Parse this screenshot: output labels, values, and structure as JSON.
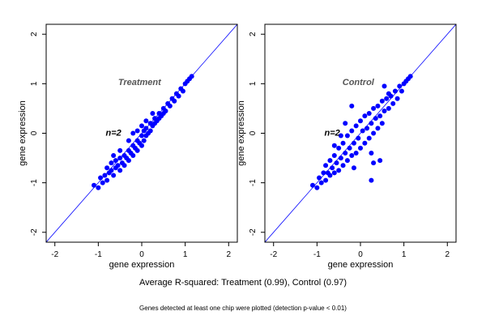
{
  "caption": "Average R-squared: Treatment (0.99), Control (0.97)",
  "footnote": "Genes detected at least one chip were plotted (detection p-value < 0.01)",
  "chart_data": [
    {
      "type": "scatter",
      "title": "",
      "panel_label": "Treatment",
      "annotation": "n=2",
      "xlabel": "gene expression",
      "ylabel": "gene expression",
      "xlim": [
        -2.2,
        2.2
      ],
      "ylim": [
        -2.2,
        2.2
      ],
      "xticks": [
        -2,
        -1,
        0,
        1,
        2
      ],
      "yticks": [
        -2,
        -1,
        0,
        1,
        2
      ],
      "reference_line": {
        "slope": 1,
        "intercept": 0,
        "color": "#0000ff"
      },
      "point_color": "#0000ff",
      "grid": false,
      "points": [
        [
          -1.1,
          -1.05
        ],
        [
          -1.0,
          -1.1
        ],
        [
          -0.95,
          -0.9
        ],
        [
          -0.9,
          -1.0
        ],
        [
          -0.85,
          -0.85
        ],
        [
          -0.8,
          -0.95
        ],
        [
          -0.8,
          -0.7
        ],
        [
          -0.75,
          -0.8
        ],
        [
          -0.7,
          -0.75
        ],
        [
          -0.7,
          -0.6
        ],
        [
          -0.65,
          -0.85
        ],
        [
          -0.6,
          -0.7
        ],
        [
          -0.6,
          -0.55
        ],
        [
          -0.55,
          -0.65
        ],
        [
          -0.5,
          -0.75
        ],
        [
          -0.5,
          -0.5
        ],
        [
          -0.45,
          -0.6
        ],
        [
          -0.4,
          -0.45
        ],
        [
          -0.4,
          -0.65
        ],
        [
          -0.35,
          -0.5
        ],
        [
          -0.3,
          -0.35
        ],
        [
          -0.3,
          -0.55
        ],
        [
          -0.25,
          -0.4
        ],
        [
          -0.2,
          -0.25
        ],
        [
          -0.2,
          -0.45
        ],
        [
          -0.15,
          -0.3
        ],
        [
          -0.1,
          -0.15
        ],
        [
          -0.1,
          -0.35
        ],
        [
          -0.05,
          -0.2
        ],
        [
          0.0,
          -0.05
        ],
        [
          0.0,
          -0.25
        ],
        [
          0.05,
          0.05
        ],
        [
          0.05,
          -0.15
        ],
        [
          0.1,
          0.1
        ],
        [
          0.1,
          -0.05
        ],
        [
          0.15,
          0.0
        ],
        [
          0.2,
          0.2
        ],
        [
          0.2,
          0.05
        ],
        [
          0.25,
          0.15
        ],
        [
          0.3,
          0.3
        ],
        [
          0.3,
          0.2
        ],
        [
          0.35,
          0.25
        ],
        [
          0.4,
          0.4
        ],
        [
          0.4,
          0.3
        ],
        [
          0.45,
          0.35
        ],
        [
          0.5,
          0.5
        ],
        [
          0.5,
          0.4
        ],
        [
          0.55,
          0.45
        ],
        [
          0.6,
          0.6
        ],
        [
          0.65,
          0.55
        ],
        [
          0.7,
          0.7
        ],
        [
          0.75,
          0.65
        ],
        [
          0.8,
          0.8
        ],
        [
          0.85,
          0.75
        ],
        [
          0.9,
          0.9
        ],
        [
          0.95,
          0.85
        ],
        [
          1.0,
          1.0
        ],
        [
          1.05,
          1.05
        ],
        [
          1.1,
          1.1
        ],
        [
          1.15,
          1.15
        ],
        [
          -0.5,
          -0.35
        ],
        [
          -0.3,
          -0.15
        ],
        [
          -0.1,
          0.05
        ],
        [
          0.1,
          0.25
        ],
        [
          -0.65,
          -0.45
        ],
        [
          -0.2,
          0.0
        ],
        [
          0.0,
          0.15
        ],
        [
          0.25,
          0.4
        ]
      ]
    },
    {
      "type": "scatter",
      "title": "",
      "panel_label": "Control",
      "annotation": "n=2",
      "xlabel": "gene expression",
      "ylabel": "gene expression",
      "xlim": [
        -2.2,
        2.2
      ],
      "ylim": [
        -2.2,
        2.2
      ],
      "xticks": [
        -2,
        -1,
        0,
        1,
        2
      ],
      "yticks": [
        -2,
        -1,
        0,
        1,
        2
      ],
      "reference_line": {
        "slope": 1,
        "intercept": 0,
        "color": "#0000ff"
      },
      "point_color": "#0000ff",
      "grid": false,
      "points": [
        [
          -1.1,
          -1.05
        ],
        [
          -1.0,
          -1.1
        ],
        [
          -0.95,
          -0.9
        ],
        [
          -0.9,
          -1.0
        ],
        [
          -0.85,
          -0.8
        ],
        [
          -0.8,
          -0.95
        ],
        [
          -0.8,
          -0.65
        ],
        [
          -0.75,
          -0.8
        ],
        [
          -0.7,
          -0.55
        ],
        [
          -0.7,
          -0.85
        ],
        [
          -0.65,
          -0.7
        ],
        [
          -0.6,
          -0.45
        ],
        [
          -0.6,
          -0.8
        ],
        [
          -0.55,
          -0.6
        ],
        [
          -0.5,
          -0.3
        ],
        [
          -0.5,
          -0.75
        ],
        [
          -0.45,
          -0.5
        ],
        [
          -0.4,
          -0.2
        ],
        [
          -0.4,
          -0.65
        ],
        [
          -0.35,
          -0.4
        ],
        [
          -0.3,
          -0.05
        ],
        [
          -0.3,
          -0.55
        ],
        [
          -0.25,
          -0.3
        ],
        [
          -0.2,
          0.05
        ],
        [
          -0.2,
          -0.45
        ],
        [
          -0.15,
          -0.2
        ],
        [
          -0.1,
          0.15
        ],
        [
          -0.1,
          -0.4
        ],
        [
          -0.05,
          -0.1
        ],
        [
          0.0,
          0.25
        ],
        [
          0.0,
          -0.3
        ],
        [
          0.05,
          0.05
        ],
        [
          0.1,
          0.35
        ],
        [
          0.1,
          -0.2
        ],
        [
          0.15,
          0.1
        ],
        [
          0.2,
          0.4
        ],
        [
          0.2,
          -0.1
        ],
        [
          0.25,
          0.2
        ],
        [
          0.3,
          0.5
        ],
        [
          0.3,
          0.0
        ],
        [
          0.35,
          0.3
        ],
        [
          0.4,
          0.55
        ],
        [
          0.4,
          0.1
        ],
        [
          0.45,
          0.35
        ],
        [
          0.5,
          0.65
        ],
        [
          0.5,
          0.2
        ],
        [
          0.55,
          0.45
        ],
        [
          0.6,
          0.7
        ],
        [
          0.65,
          0.5
        ],
        [
          0.7,
          0.75
        ],
        [
          0.75,
          0.6
        ],
        [
          0.8,
          0.85
        ],
        [
          0.85,
          0.7
        ],
        [
          0.9,
          0.95
        ],
        [
          0.95,
          0.85
        ],
        [
          1.0,
          1.0
        ],
        [
          1.05,
          1.05
        ],
        [
          1.1,
          1.1
        ],
        [
          1.15,
          1.15
        ],
        [
          -0.2,
          0.55
        ],
        [
          -0.35,
          0.2
        ],
        [
          -0.45,
          -0.05
        ],
        [
          -0.6,
          -0.25
        ],
        [
          -0.15,
          -0.7
        ],
        [
          0.25,
          -0.4
        ],
        [
          0.25,
          -0.95
        ],
        [
          0.45,
          -0.55
        ],
        [
          0.3,
          -0.6
        ],
        [
          0.55,
          0.95
        ],
        [
          0.65,
          0.8
        ]
      ]
    }
  ]
}
